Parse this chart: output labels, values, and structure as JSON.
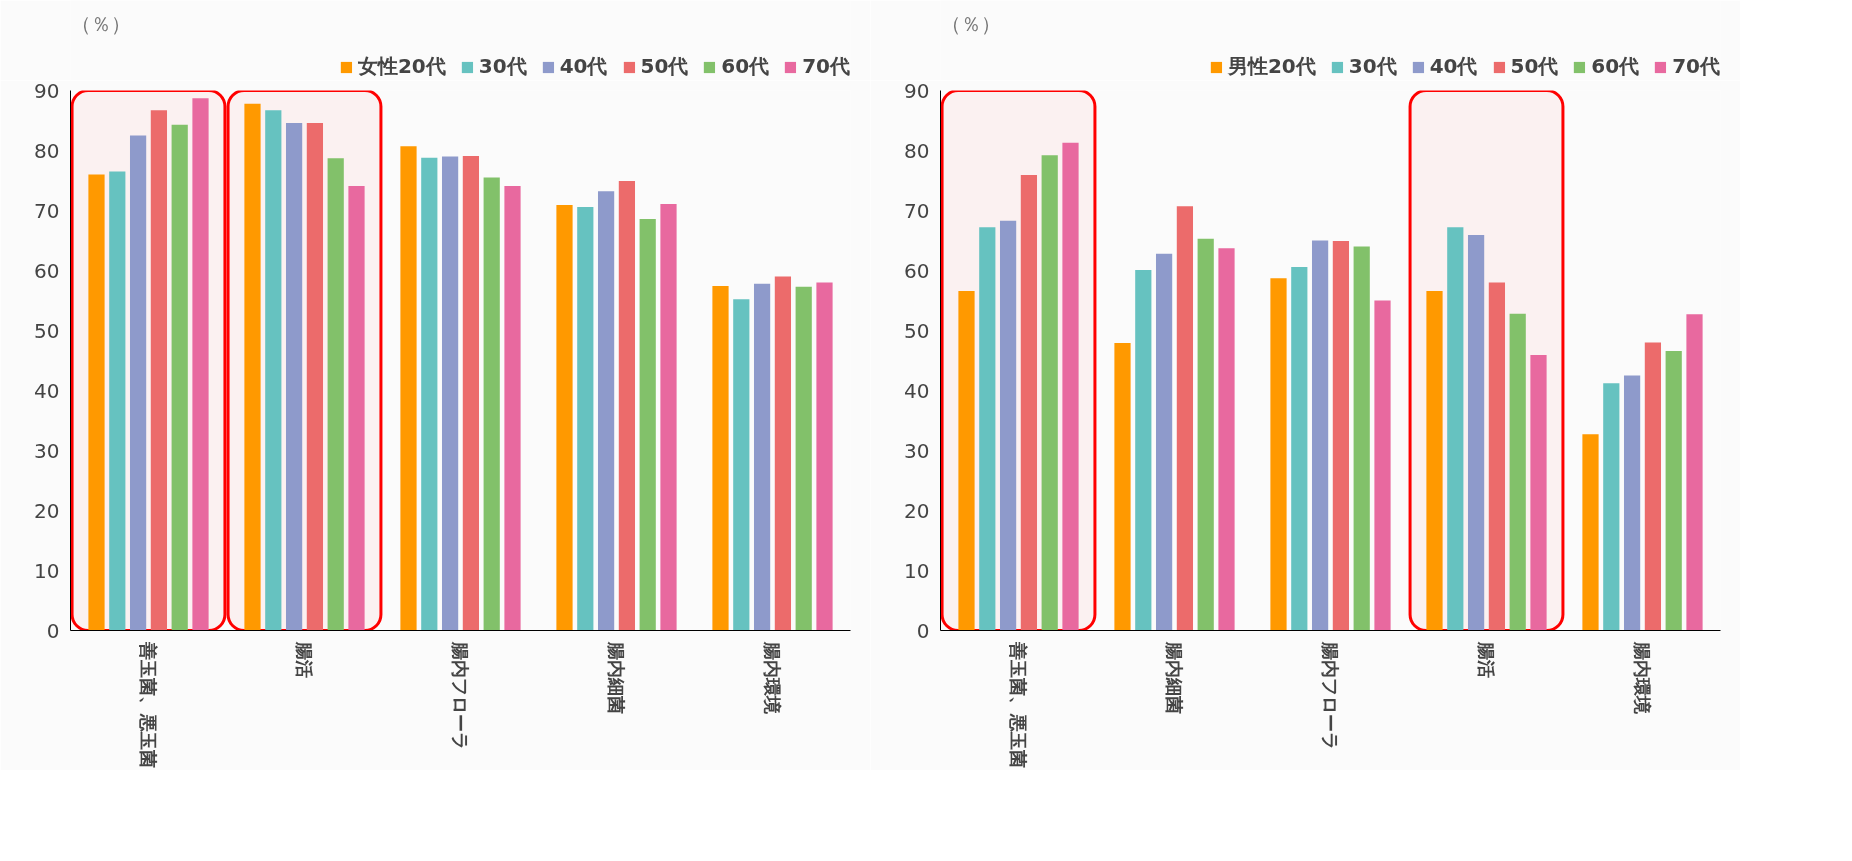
{
  "chart_data": [
    {
      "type": "bar",
      "ylabel": "（％）",
      "categories": [
        "善玉菌、悪玉菌",
        "腸活",
        "腸内フローラ",
        "腸内細菌",
        "腸内環境"
      ],
      "ylim": [
        0,
        90
      ],
      "yticks": [
        0,
        10,
        20,
        30,
        40,
        50,
        60,
        70,
        80,
        90
      ],
      "grid": false,
      "legend": "top right",
      "series": [
        {
          "name": "女性20代",
          "color": "#ff9900",
          "values": [
            76,
            87.8,
            80.7,
            70.9,
            57.4
          ]
        },
        {
          "name": "30代",
          "color": "#66c2c0",
          "values": [
            76.5,
            86.7,
            78.8,
            70.6,
            55.2
          ]
        },
        {
          "name": "40代",
          "color": "#8e9acb",
          "values": [
            82.5,
            84.6,
            79,
            73.2,
            57.8
          ]
        },
        {
          "name": "50代",
          "color": "#ec6b6b",
          "values": [
            86.7,
            84.6,
            79.1,
            74.9,
            59
          ]
        },
        {
          "name": "60代",
          "color": "#82c16a",
          "values": [
            84.3,
            78.7,
            75.5,
            68.6,
            57.3
          ]
        },
        {
          "name": "70代",
          "color": "#e8699f",
          "values": [
            88.7,
            74.1,
            74.1,
            71.1,
            58
          ]
        }
      ],
      "bands": [
        {
          "axis": "x",
          "from": "善玉菌、悪玉菌",
          "to": "善玉菌、悪玉菌",
          "color": "#ff0000"
        },
        {
          "axis": "x",
          "from": "腸活",
          "to": "腸活",
          "color": "#ff0000"
        }
      ]
    },
    {
      "type": "bar",
      "ylabel": "（％）",
      "categories": [
        "善玉菌、悪玉菌",
        "腸内細菌",
        "腸内フローラ",
        "腸活",
        "腸内環境"
      ],
      "ylim": [
        0,
        90
      ],
      "yticks": [
        0,
        10,
        20,
        30,
        40,
        50,
        60,
        70,
        80,
        90
      ],
      "grid": false,
      "legend": "top right",
      "series": [
        {
          "name": "男性20代",
          "color": "#ff9900",
          "values": [
            56.6,
            47.9,
            58.7,
            56.6,
            32.7
          ]
        },
        {
          "name": "30代",
          "color": "#66c2c0",
          "values": [
            67.2,
            60.1,
            60.6,
            67.2,
            41.2
          ]
        },
        {
          "name": "40代",
          "color": "#8e9acb",
          "values": [
            68.3,
            62.8,
            65,
            65.9,
            42.5
          ]
        },
        {
          "name": "50代",
          "color": "#ec6b6b",
          "values": [
            75.9,
            70.7,
            64.9,
            58,
            48
          ]
        },
        {
          "name": "60代",
          "color": "#82c16a",
          "values": [
            79.2,
            65.3,
            64,
            52.8,
            46.6
          ]
        },
        {
          "name": "70代",
          "color": "#e8699f",
          "values": [
            81.3,
            63.7,
            55,
            45.9,
            52.7
          ]
        }
      ],
      "bands": [
        {
          "axis": "x",
          "from": "善玉菌、悪玉菌",
          "to": "善玉菌、悪玉菌",
          "color": "#ff0000"
        },
        {
          "axis": "x",
          "from": "腸活",
          "to": "腸活",
          "color": "#ff0000"
        }
      ]
    }
  ]
}
